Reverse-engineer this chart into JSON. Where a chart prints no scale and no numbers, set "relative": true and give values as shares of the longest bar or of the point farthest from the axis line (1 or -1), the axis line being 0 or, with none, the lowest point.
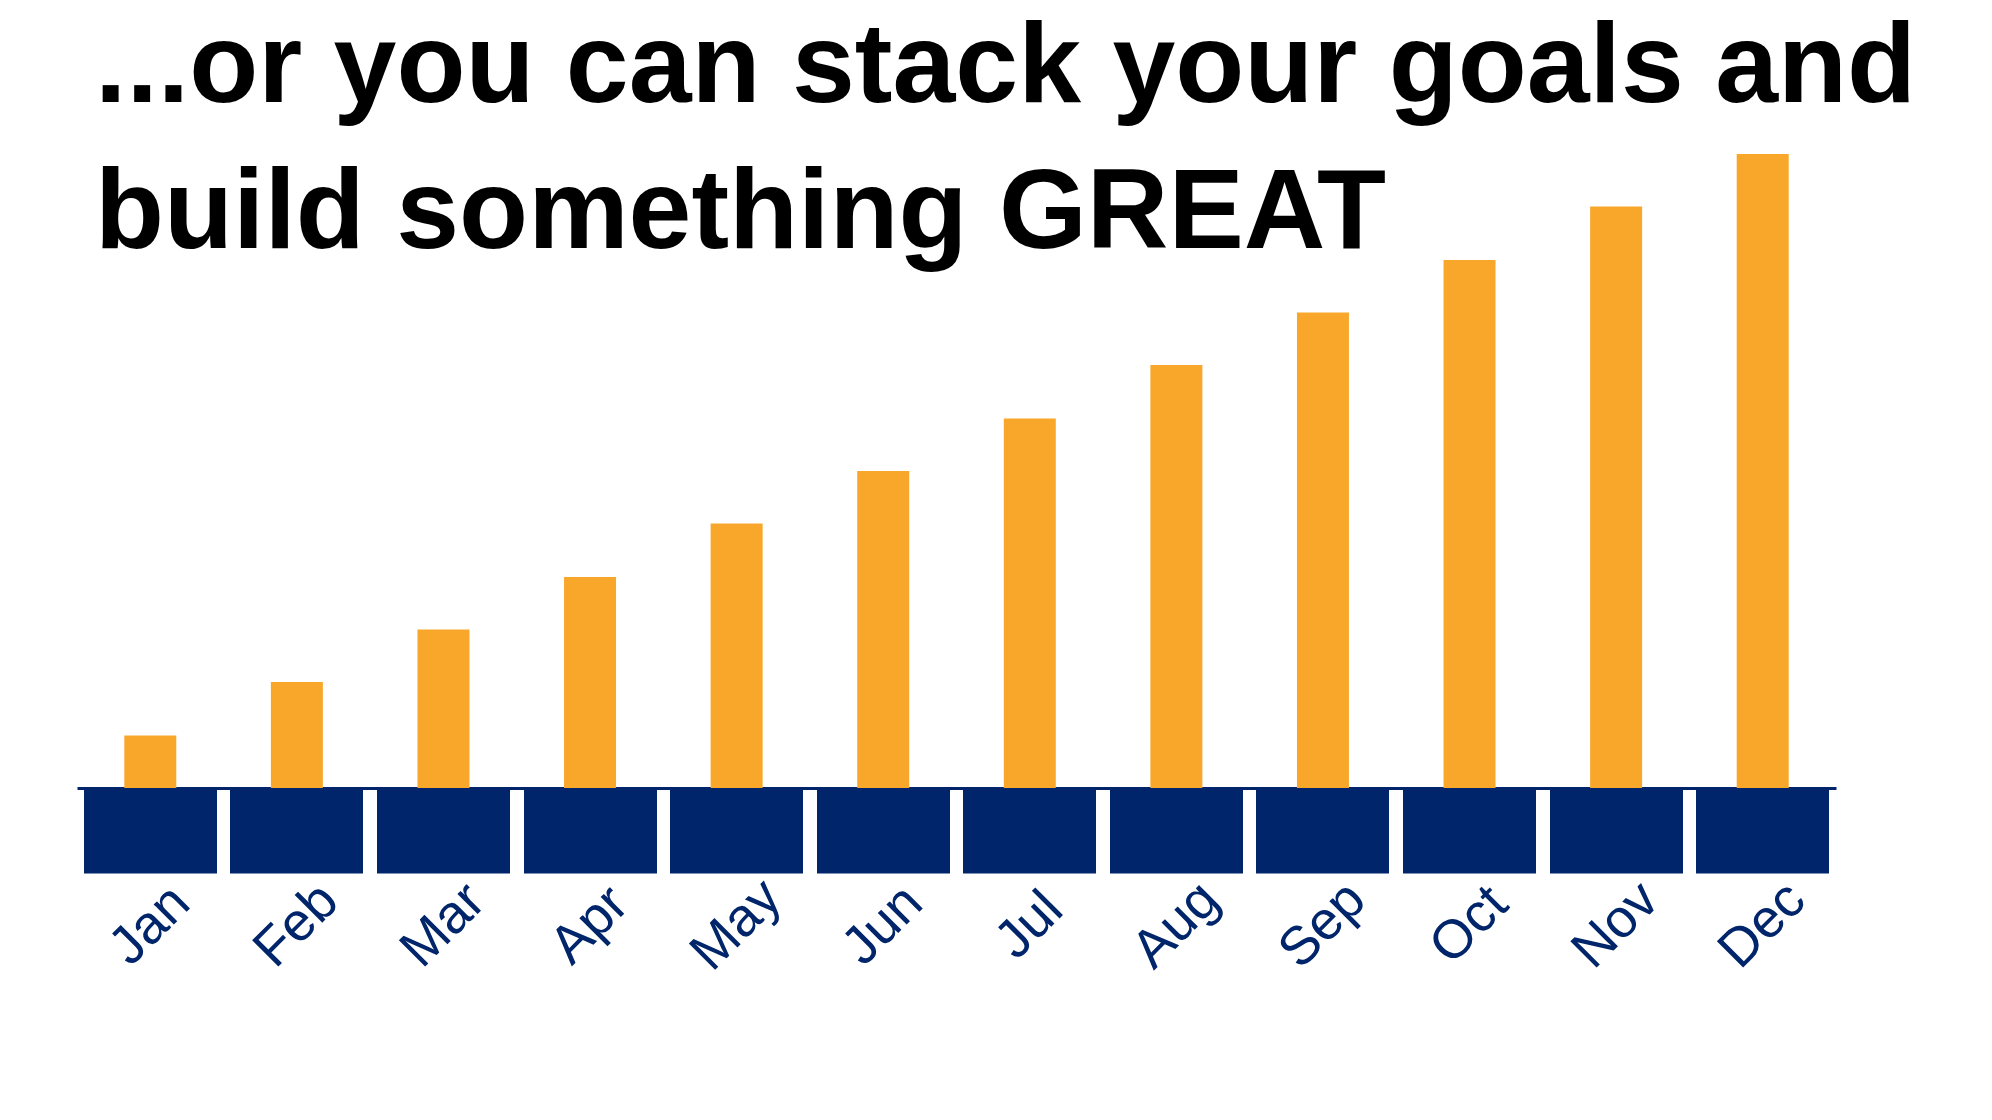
{
  "chart_data": {
    "type": "bar",
    "title": "...or you can stack your goals and build something GREAT",
    "categories": [
      "Jan",
      "Feb",
      "Mar",
      "Apr",
      "May",
      "Jun",
      "Jul",
      "Aug",
      "Sep",
      "Oct",
      "Nov",
      "Dec"
    ],
    "values": [
      0.083,
      0.167,
      0.25,
      0.333,
      0.417,
      0.5,
      0.583,
      0.667,
      0.75,
      0.833,
      0.917,
      1
    ],
    "color": "#f9a72b",
    "relative": true
  }
}
